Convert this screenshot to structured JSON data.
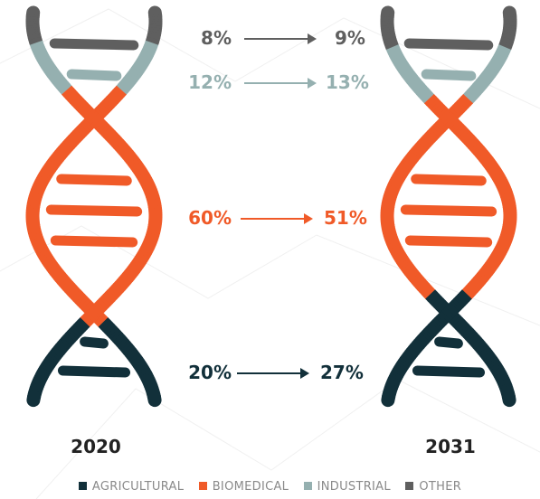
{
  "chart_data": {
    "type": "helix-comparison",
    "periods": [
      "2020",
      "2031"
    ],
    "series": [
      {
        "name": "OTHER",
        "color": "#5f5f5f",
        "values": [
          8,
          9
        ]
      },
      {
        "name": "INDUSTRIAL",
        "color": "#95b0b0",
        "values": [
          12,
          13
        ]
      },
      {
        "name": "BIOMEDICAL",
        "color": "#f05a28",
        "values": [
          60,
          51
        ]
      },
      {
        "name": "AGRICULTURAL",
        "color": "#12303a",
        "values": [
          20,
          27
        ]
      }
    ],
    "value_labels": {
      "OTHER": [
        "8%",
        "9%"
      ],
      "INDUSTRIAL": [
        "12%",
        "13%"
      ],
      "BIOMEDICAL": [
        "60%",
        "51%"
      ],
      "AGRICULTURAL": [
        "20%",
        "27%"
      ]
    },
    "legend": [
      "AGRICULTURAL",
      "BIOMEDICAL",
      "INDUSTRIAL",
      "OTHER"
    ],
    "legend_placement": "bottom-center"
  },
  "labels": {
    "year_left": "2020",
    "year_right": "2031"
  }
}
